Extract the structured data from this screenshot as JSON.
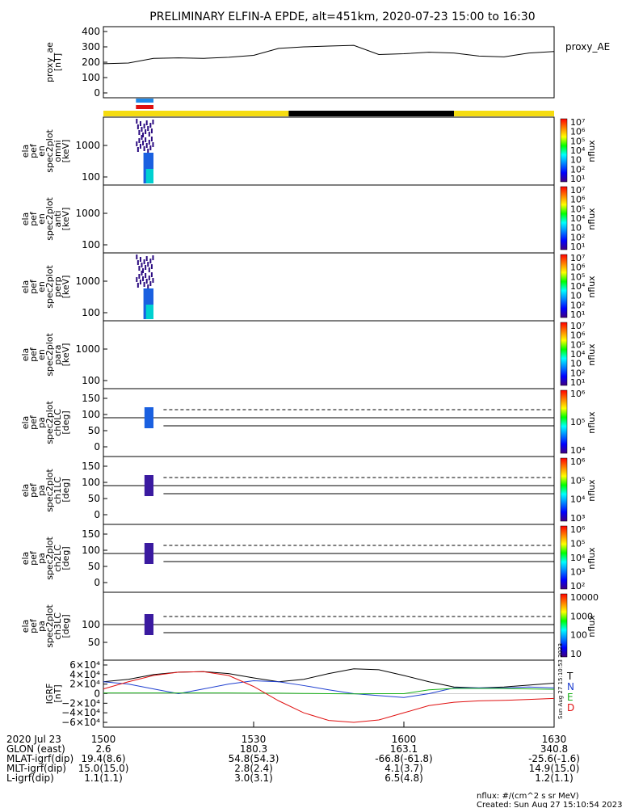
{
  "title": "PRELIMINARY ELFIN-A EPDE, alt=451km, 2020-07-23 15:00 to 16:30",
  "panels": [
    {
      "key": "ae",
      "label_lines": [
        "proxy_ae",
        "[nT]"
      ],
      "ticks": [
        "400",
        "300",
        "200",
        "100",
        "0"
      ],
      "right_label": "proxy_AE"
    },
    {
      "key": "omni",
      "label_lines": [
        "ela",
        "pef",
        "en",
        "spec2plot",
        "omni",
        "[keV]"
      ],
      "ticks": [
        "1000",
        "100"
      ],
      "colorbar_ticks": [
        "10⁷",
        "10⁶",
        "10⁵",
        "10⁴",
        "10⁳",
        "10²",
        "10¹"
      ],
      "colorbar_label": "nflux"
    },
    {
      "key": "anti",
      "label_lines": [
        "ela",
        "pef",
        "en",
        "spec2plot",
        "anti",
        "[keV]"
      ],
      "ticks": [
        "1000",
        "100"
      ],
      "colorbar_ticks": [
        "10⁷",
        "10⁶",
        "10⁵",
        "10⁴",
        "10⁳",
        "10²",
        "10¹"
      ],
      "colorbar_label": "nflux"
    },
    {
      "key": "perp",
      "label_lines": [
        "ela",
        "pef",
        "en",
        "spec2plot",
        "perp",
        "[keV]"
      ],
      "ticks": [
        "1000",
        "100"
      ],
      "colorbar_ticks": [
        "10⁷",
        "10⁶",
        "10⁵",
        "10⁴",
        "10⁳",
        "10²",
        "10¹"
      ],
      "colorbar_label": "nflux"
    },
    {
      "key": "para",
      "label_lines": [
        "ela",
        "pef",
        "en",
        "spec2plot",
        "para",
        "[keV]"
      ],
      "ticks": [
        "1000",
        "100"
      ],
      "colorbar_ticks": [
        "10⁷",
        "10⁶",
        "10⁵",
        "10⁴",
        "10⁳",
        "10²",
        "10¹"
      ],
      "colorbar_label": "nflux"
    },
    {
      "key": "ch0",
      "label_lines": [
        "ela",
        "pef",
        "pa",
        "spec2plot",
        "ch0LC",
        "[deg]"
      ],
      "ticks": [
        "150",
        "100",
        "50",
        "0"
      ],
      "colorbar_ticks": [
        "10⁶",
        "10⁵",
        "10⁴"
      ],
      "colorbar_label": "nflux"
    },
    {
      "key": "ch1",
      "label_lines": [
        "ela",
        "pef",
        "pa",
        "spec2plot",
        "ch1LC",
        "[deg]"
      ],
      "ticks": [
        "150",
        "100",
        "50",
        "0"
      ],
      "colorbar_ticks": [
        "10⁶",
        "10⁵",
        "10⁴",
        "10³"
      ],
      "colorbar_label": "nflux"
    },
    {
      "key": "ch2",
      "label_lines": [
        "ela",
        "pef",
        "pa",
        "spec2plot",
        "ch2LC",
        "[deg]"
      ],
      "ticks": [
        "150",
        "100",
        "50",
        "0"
      ],
      "colorbar_ticks": [
        "10⁶",
        "10⁵",
        "10⁴",
        "10³",
        "10²"
      ],
      "colorbar_label": "nflux"
    },
    {
      "key": "ch3",
      "label_lines": [
        "ela",
        "pef",
        "pa",
        "spec2plot",
        "ch3LC",
        "[deg]"
      ],
      "ticks": [
        "100",
        "50"
      ],
      "colorbar_ticks": [
        "10000",
        "1000",
        "100",
        "10"
      ],
      "colorbar_label": "nflux"
    },
    {
      "key": "igrf",
      "label_lines": [
        "IGRF",
        "[nT]"
      ],
      "ticks": [
        "6×10⁴",
        "4×10⁴",
        "2×10⁴",
        "0",
        "−2×10⁴",
        "−4×10⁴",
        "−6×10⁴"
      ],
      "legend": [
        "T",
        "N",
        "E",
        "D"
      ],
      "legend_colors": [
        "#000000",
        "#1f3fd0",
        "#18b018",
        "#e01010"
      ]
    }
  ],
  "x_axis": {
    "tick_labels": [
      "1500",
      "1530",
      "1600",
      "1630"
    ]
  },
  "footer_rows": [
    {
      "label": "2020 Jul 23",
      "values": [
        "1500",
        "1530",
        "1600",
        "1630"
      ]
    },
    {
      "label": "GLON (east)",
      "values": [
        "2.6",
        "180.3",
        "163.1",
        "340.8"
      ]
    },
    {
      "label": "MLAT-igrf(dip)",
      "values": [
        "19.4(8.6)",
        "54.8(54.3)",
        "-66.8(-61.8)",
        "-25.6(-1.6)"
      ]
    },
    {
      "label": "MLT-igrf(dip)",
      "values": [
        "15.0(15.0)",
        "2.8(2.4)",
        "4.1(3.7)",
        "14.9(15.0)"
      ]
    },
    {
      "label": "L-igrf(dip)",
      "values": [
        "1.1(1.1)",
        "3.0(3.1)",
        "6.5(4.8)",
        "1.2(1.1)"
      ]
    }
  ],
  "footnote": "nflux: #/(cm^2 s sr MeV)",
  "created": "Created: Sun Aug 27 15:10:54 2023",
  "vertical_stamp": "Sun Aug 27 15:10:53 2023",
  "colors": {
    "day": "#f5dc10",
    "night": "#000000",
    "science_blue": "#1e88e8",
    "science_red": "#e01010"
  },
  "chart_data": {
    "type": "line",
    "x_unit": "UT (hhmm)",
    "x_range": [
      "1500",
      "1630"
    ],
    "proxy_ae": {
      "x_min": [
        0,
        5,
        10,
        15,
        20,
        25,
        30,
        35,
        40,
        45,
        50,
        55,
        60,
        65,
        70,
        75,
        80,
        85,
        90
      ],
      "values": [
        190,
        195,
        225,
        228,
        225,
        232,
        245,
        290,
        300,
        305,
        310,
        250,
        255,
        265,
        260,
        240,
        235,
        260,
        270
      ],
      "ylim": [
        0,
        400
      ]
    },
    "igrf": {
      "x_min": [
        0,
        5,
        10,
        15,
        20,
        25,
        30,
        35,
        40,
        45,
        50,
        55,
        60,
        65,
        70,
        75,
        80,
        85,
        90
      ],
      "series": [
        {
          "name": "T",
          "values": [
            25000,
            30000,
            40000,
            45000,
            46000,
            42000,
            33000,
            25000,
            30000,
            42000,
            52000,
            50000,
            38000,
            25000,
            14000,
            12000,
            14000,
            18000,
            22000
          ]
        },
        {
          "name": "N",
          "values": [
            25000,
            20000,
            10000,
            0,
            10000,
            20000,
            27000,
            25000,
            17000,
            8000,
            0,
            -4000,
            -8000,
            0,
            12000,
            12000,
            12000,
            14000,
            12000
          ]
        },
        {
          "name": "E",
          "values": [
            1500,
            1500,
            1500,
            1500,
            1500,
            1500,
            1000,
            1000,
            500,
            0,
            -500,
            0,
            0,
            8000,
            11000,
            11000,
            11000,
            10000,
            9000
          ]
        },
        {
          "name": "D",
          "values": [
            10000,
            25000,
            38000,
            45000,
            46000,
            38000,
            15000,
            -15000,
            -40000,
            -56000,
            -60000,
            -55000,
            -40000,
            -25000,
            -18000,
            -15000,
            -14000,
            -12000,
            -10000
          ]
        }
      ],
      "ylim": [
        -60000,
        60000
      ]
    },
    "science_zone_min": [
      6.5,
      10
    ],
    "day_night": [
      {
        "state": "day",
        "from_min": 0,
        "to_min": 37
      },
      {
        "state": "night",
        "from_min": 37,
        "to_min": 70
      },
      {
        "state": "day",
        "from_min": 70,
        "to_min": 90
      }
    ]
  }
}
